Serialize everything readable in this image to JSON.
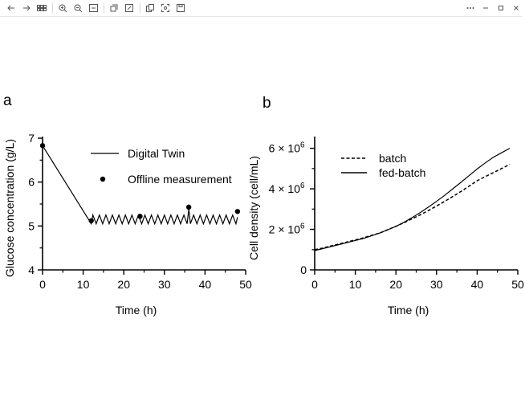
{
  "toolbar": {
    "left_icons": [
      "back-arrow-icon",
      "forward-arrow-icon",
      "grid-icon",
      "zoom-in-icon",
      "zoom-out-icon",
      "fit-page-icon",
      "rotate-icon",
      "edit-icon",
      "copy-icon",
      "screenshot-icon",
      "save-icon"
    ],
    "right_icons": [
      "more-icon",
      "minimize-icon",
      "maximize-icon",
      "close-icon"
    ]
  },
  "chart_data": [
    {
      "type": "line",
      "panel_label": "a",
      "xlabel": "Time (h)",
      "ylabel": "Glucose concentration (g/L)",
      "xlim": [
        0,
        50
      ],
      "ylim": [
        4,
        7
      ],
      "xticks": [
        "0",
        "10",
        "20",
        "30",
        "40",
        "50"
      ],
      "yticks": [
        "4",
        "5",
        "6",
        "7"
      ],
      "grid": false,
      "legend": "top-right",
      "series": [
        {
          "name": "Digital Twin",
          "style": "solid-line",
          "x": [
            0,
            12,
            12.4,
            13.2,
            14.0,
            14.8,
            15.6,
            16.4,
            17.2,
            18.0,
            18.8,
            19.6,
            20.4,
            21.2,
            22.0,
            22.8,
            23.6,
            24.4,
            25.2,
            26.0,
            26.8,
            27.6,
            28.4,
            29.2,
            30.0,
            30.8,
            31.6,
            32.4,
            33.2,
            34.0,
            34.8,
            35.6,
            36.0,
            36.4,
            37.2,
            38.0,
            38.8,
            39.6,
            40.4,
            41.2,
            42.0,
            42.8,
            43.6,
            44.4,
            45.2,
            46.0,
            46.8,
            47.6,
            48.0
          ],
          "y": [
            6.83,
            5.05,
            5.25,
            5.05,
            5.25,
            5.05,
            5.25,
            5.05,
            5.25,
            5.05,
            5.25,
            5.05,
            5.25,
            5.05,
            5.25,
            5.05,
            5.25,
            5.05,
            5.25,
            5.05,
            5.25,
            5.05,
            5.25,
            5.05,
            5.25,
            5.05,
            5.25,
            5.05,
            5.25,
            5.05,
            5.25,
            5.05,
            5.38,
            5.05,
            5.25,
            5.05,
            5.25,
            5.05,
            5.25,
            5.05,
            5.25,
            5.05,
            5.25,
            5.05,
            5.25,
            5.05,
            5.25,
            5.05,
            5.2
          ]
        },
        {
          "name": "Offline measurement",
          "style": "points",
          "x": [
            0,
            12,
            24,
            36,
            48
          ],
          "y": [
            6.83,
            5.12,
            5.22,
            5.43,
            5.33
          ]
        }
      ]
    },
    {
      "type": "line",
      "panel_label": "b",
      "xlabel": "Time (h)",
      "ylabel": "Cell density (cell/mL)",
      "xlim": [
        0,
        50
      ],
      "ylim": [
        0,
        6500000
      ],
      "xticks": [
        "0",
        "10",
        "20",
        "30",
        "40",
        "50"
      ],
      "ytick_values": [
        0,
        2000000,
        4000000,
        6000000
      ],
      "ytick_labels": [
        "0",
        "2 × 10",
        "4 × 10",
        "6 × 10"
      ],
      "ytick_exponent": "6",
      "grid": false,
      "legend": "top-left",
      "series": [
        {
          "name": "batch",
          "style": "dashed-line",
          "x": [
            0,
            2,
            4,
            6,
            8,
            10,
            12,
            14,
            16,
            18,
            20,
            22,
            24,
            26,
            28,
            30,
            32,
            34,
            36,
            38,
            40,
            42,
            44,
            46,
            48
          ],
          "y": [
            1000000,
            1080000,
            1180000,
            1280000,
            1380000,
            1480000,
            1580000,
            1700000,
            1820000,
            1980000,
            2150000,
            2330000,
            2520000,
            2720000,
            2930000,
            3150000,
            3380000,
            3620000,
            3870000,
            4130000,
            4400000,
            4600000,
            4800000,
            5000000,
            5200000
          ]
        },
        {
          "name": "fed-batch",
          "style": "solid-line",
          "x": [
            0,
            2,
            4,
            6,
            8,
            10,
            12,
            14,
            16,
            18,
            20,
            22,
            24,
            26,
            28,
            30,
            32,
            34,
            36,
            38,
            40,
            42,
            44,
            46,
            48
          ],
          "y": [
            950000,
            1050000,
            1150000,
            1250000,
            1350000,
            1450000,
            1550000,
            1680000,
            1820000,
            1980000,
            2150000,
            2350000,
            2580000,
            2830000,
            3100000,
            3380000,
            3680000,
            4000000,
            4320000,
            4650000,
            4980000,
            5280000,
            5560000,
            5780000,
            6000000
          ]
        }
      ]
    }
  ]
}
